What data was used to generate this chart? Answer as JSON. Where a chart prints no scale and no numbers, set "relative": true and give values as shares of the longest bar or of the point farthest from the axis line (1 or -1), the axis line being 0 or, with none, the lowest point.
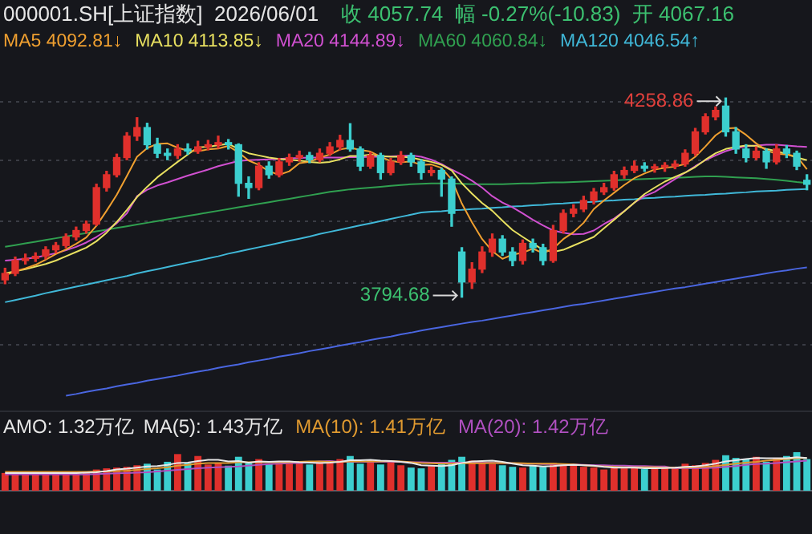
{
  "chart_data": [
    {
      "type": "candlestick",
      "title": "000001.SH[上证指数]  2026/06/01",
      "subtitle": "收 4057.74  幅 -0.27%(-10.83)  开 4067.16",
      "grid": "y",
      "tick_labels": false,
      "yticks": [
        4250,
        4114,
        3971,
        3828,
        3684
      ],
      "marker": "none",
      "categories": [
        null,
        null,
        null,
        null,
        null,
        null,
        null,
        null,
        null,
        null,
        null,
        null,
        null,
        null,
        null,
        null,
        null,
        null,
        null,
        null,
        null,
        null,
        null,
        null,
        null,
        null,
        null,
        null,
        null,
        null,
        null,
        null,
        null,
        null,
        null,
        null,
        null,
        null,
        null,
        null,
        null,
        null,
        null,
        null,
        null,
        null,
        null,
        null,
        null,
        null,
        null,
        null,
        null,
        null,
        null,
        null,
        null,
        null,
        null,
        null,
        null,
        null,
        null,
        null,
        null,
        null,
        null,
        null,
        null,
        null,
        null,
        null,
        null,
        null,
        null,
        null,
        null,
        null,
        null,
        null
      ],
      "ohlc": [
        [
          3835,
          3862,
          3826,
          3850
        ],
        [
          3850,
          3888,
          3845,
          3880
        ],
        [
          3880,
          3895,
          3872,
          3885
        ],
        [
          3885,
          3898,
          3878,
          3890
        ],
        [
          3890,
          3912,
          3884,
          3905
        ],
        [
          3905,
          3922,
          3898,
          3915
        ],
        [
          3915,
          3942,
          3910,
          3935
        ],
        [
          3935,
          3958,
          3928,
          3950
        ],
        [
          3950,
          3972,
          3944,
          3965
        ],
        [
          3965,
          4058,
          3962,
          4050
        ],
        [
          4050,
          4088,
          4042,
          4080
        ],
        [
          4080,
          4128,
          4075,
          4120
        ],
        [
          4120,
          4178,
          4115,
          4170
        ],
        [
          4170,
          4213,
          4160,
          4190
        ],
        [
          4190,
          4200,
          4140,
          4150
        ],
        [
          4150,
          4165,
          4120,
          4130
        ],
        [
          4130,
          4140,
          4115,
          4125
        ],
        [
          4125,
          4150,
          4118,
          4140
        ],
        [
          4140,
          4152,
          4128,
          4135
        ],
        [
          4135,
          4158,
          4130,
          4145
        ],
        [
          4145,
          4160,
          4138,
          4150
        ],
        [
          4150,
          4170,
          4142,
          4155
        ],
        [
          4155,
          4162,
          4140,
          4150
        ],
        [
          4150,
          4152,
          4030,
          4060
        ],
        [
          4060,
          4075,
          4025,
          4050
        ],
        [
          4050,
          4108,
          4045,
          4100
        ],
        [
          4100,
          4110,
          4072,
          4080
        ],
        [
          4080,
          4118,
          4075,
          4110
        ],
        [
          4110,
          4128,
          4102,
          4120
        ],
        [
          4120,
          4135,
          4112,
          4125
        ],
        [
          4125,
          4132,
          4108,
          4115
        ],
        [
          4115,
          4140,
          4110,
          4130
        ],
        [
          4130,
          4155,
          4125,
          4145
        ],
        [
          4145,
          4172,
          4138,
          4160
        ],
        [
          4160,
          4199,
          4135,
          4140
        ],
        [
          4140,
          4145,
          4090,
          4100
        ],
        [
          4100,
          4132,
          4095,
          4125
        ],
        [
          4125,
          4130,
          4070,
          4085
        ],
        [
          4085,
          4118,
          4080,
          4110
        ],
        [
          4110,
          4134,
          4104,
          4125
        ],
        [
          4125,
          4130,
          4100,
          4110
        ],
        [
          4110,
          4115,
          4070,
          4085
        ],
        [
          4085,
          4098,
          4078,
          4090
        ],
        [
          4090,
          4095,
          4030,
          4070
        ],
        [
          4070,
          4075,
          3960,
          3990
        ],
        [
          3900,
          3910,
          3794.68,
          3830
        ],
        [
          3830,
          3875,
          3815,
          3860
        ],
        [
          3860,
          3912,
          3852,
          3900
        ],
        [
          3900,
          3942,
          3890,
          3930
        ],
        [
          3930,
          3938,
          3892,
          3900
        ],
        [
          3900,
          3910,
          3868,
          3880
        ],
        [
          3880,
          3928,
          3872,
          3920
        ],
        [
          3920,
          3930,
          3900,
          3910
        ],
        [
          3910,
          3918,
          3870,
          3880
        ],
        [
          3880,
          3962,
          3876,
          3950
        ],
        [
          3950,
          3998,
          3944,
          3990
        ],
        [
          3990,
          4010,
          3982,
          4000
        ],
        [
          4000,
          4030,
          3994,
          4020
        ],
        [
          4020,
          4048,
          4012,
          4040
        ],
        [
          4040,
          4060,
          4034,
          4050
        ],
        [
          4050,
          4088,
          4044,
          4080
        ],
        [
          4080,
          4098,
          4072,
          4090
        ],
        [
          4090,
          4112,
          4085,
          4100
        ],
        [
          4100,
          4108,
          4088,
          4095
        ],
        [
          4095,
          4104,
          4086,
          4098
        ],
        [
          4098,
          4108,
          4088,
          4100
        ],
        [
          4100,
          4112,
          4094,
          4105
        ],
        [
          4105,
          4138,
          4100,
          4130
        ],
        [
          4130,
          4188,
          4125,
          4180
        ],
        [
          4180,
          4222,
          4175,
          4215
        ],
        [
          4215,
          4238,
          4208,
          4230
        ],
        [
          4240,
          4258.86,
          4170,
          4180
        ],
        [
          4180,
          4190,
          4130,
          4140
        ],
        [
          4140,
          4150,
          4110,
          4120
        ],
        [
          4120,
          4145,
          4115,
          4135
        ],
        [
          4135,
          4140,
          4095,
          4110
        ],
        [
          4110,
          4150,
          4105,
          4140
        ],
        [
          4140,
          4148,
          4120,
          4130
        ],
        [
          4130,
          4135,
          4092,
          4100
        ],
        [
          4067.16,
          4080,
          4045,
          4057.74
        ]
      ],
      "colors": [
        "#e0302c",
        "#e0302c",
        "#e0302c",
        "#e0302c",
        "#e0302c",
        "#e0302c",
        "#e0302c",
        "#e0302c",
        "#e0302c",
        "#e0302c",
        "#e0302c",
        "#e0302c",
        "#e0302c",
        "#e0302c",
        "#3ccfcf",
        "#3ccfcf",
        "#3ccfcf",
        "#e0302c",
        "#3ccfcf",
        "#e0302c",
        "#e0302c",
        "#e0302c",
        "#3ccfcf",
        "#3ccfcf",
        "#3ccfcf",
        "#e0302c",
        "#3ccfcf",
        "#e0302c",
        "#e0302c",
        "#e0302c",
        "#3ccfcf",
        "#e0302c",
        "#e0302c",
        "#e0302c",
        "#3ccfcf",
        "#3ccfcf",
        "#e0302c",
        "#3ccfcf",
        "#e0302c",
        "#e0302c",
        "#3ccfcf",
        "#3ccfcf",
        "#e0302c",
        "#3ccfcf",
        "#3ccfcf",
        "#3ccfcf",
        "#e0302c",
        "#e0302c",
        "#e0302c",
        "#3ccfcf",
        "#3ccfcf",
        "#e0302c",
        "#3ccfcf",
        "#3ccfcf",
        "#e0302c",
        "#e0302c",
        "#e0302c",
        "#e0302c",
        "#e0302c",
        "#e0302c",
        "#e0302c",
        "#e0302c",
        "#e0302c",
        "#3ccfcf",
        "#e0302c",
        "#e0302c",
        "#e0302c",
        "#e0302c",
        "#e0302c",
        "#e0302c",
        "#e0302c",
        "#3ccfcf",
        "#3ccfcf",
        "#3ccfcf",
        "#e0302c",
        "#3ccfcf",
        "#e0302c",
        "#3ccfcf",
        "#3ccfcf",
        "#3ccfcf"
      ],
      "series": [
        {
          "name": "MA5 4092.81↓",
          "type": "line",
          "color": "#f0a030",
          "values": [
            3845,
            3855,
            3862,
            3870,
            3882,
            3895,
            3906,
            3919,
            3934,
            3961,
            3996,
            4033,
            4077,
            4122,
            4142,
            4152,
            4153,
            4143,
            4136,
            4135,
            4139,
            4141,
            4147,
            4132,
            4113,
            4103,
            4088,
            4080,
            4088,
            4107,
            4110,
            4120,
            4127,
            4139,
            4143,
            4138,
            4134,
            4122,
            4112,
            4109,
            4111,
            4103,
            4104,
            4096,
            4069,
            4013,
            3969,
            3930,
            3902,
            3884,
            3894,
            3898,
            3908,
            3897,
            3908,
            3930,
            3946,
            3968,
            4000,
            4020,
            4038,
            4056,
            4072,
            4083,
            4092,
            4096,
            4099,
            4105,
            4122,
            4146,
            4172,
            4188,
            4189,
            4173,
            4153,
            4137,
            4129,
            4127,
            4123,
            4092.81
          ]
        },
        {
          "name": "MA10 4113.85↓",
          "type": "line",
          "color": "#e8e060",
          "values": [
            3850,
            3855,
            3860,
            3866,
            3872,
            3880,
            3890,
            3900,
            3910,
            3925,
            3945,
            3970,
            3998,
            4028,
            4052,
            4074,
            4092,
            4110,
            4127,
            4144,
            4145,
            4149,
            4152,
            4140,
            4130,
            4125,
            4120,
            4117,
            4115,
            4113,
            4110,
            4108,
            4110,
            4116,
            4124,
            4124,
            4127,
            4124,
            4122,
            4122,
            4120,
            4115,
            4110,
            4103,
            4090,
            4060,
            4036,
            4014,
            3996,
            3973,
            3951,
            3935,
            3920,
            3905,
            3900,
            3905,
            3915,
            3925,
            3935,
            3955,
            3975,
            3995,
            4015,
            4035,
            4050,
            4064,
            4075,
            4085,
            4098,
            4115,
            4130,
            4140,
            4145,
            4148,
            4147,
            4140,
            4135,
            4128,
            4120,
            4113.85
          ]
        },
        {
          "name": "MA20 4144.89↓",
          "type": "line",
          "color": "#d050d0",
          "values": [
            3880,
            3882,
            3884,
            3887,
            3892,
            3897,
            3904,
            3912,
            3922,
            3935,
            3950,
            3967,
            3990,
            4030,
            4045,
            4055,
            4062,
            4070,
            4078,
            4085,
            4092,
            4100,
            4106,
            4112,
            4114,
            4115,
            4116,
            4117,
            4118,
            4119,
            4120,
            4120,
            4120,
            4120,
            4121,
            4121,
            4122,
            4122,
            4123,
            4124,
            4125,
            4122,
            4115,
            4105,
            4092,
            4080,
            4066,
            4050,
            4030,
            4015,
            4004,
            3990,
            3975,
            3962,
            3950,
            3945,
            3941,
            3942,
            3950,
            3965,
            3978,
            3995,
            4015,
            4030,
            4040,
            4055,
            4070,
            4085,
            4100,
            4114,
            4125,
            4135,
            4142,
            4146,
            4148,
            4150,
            4150,
            4148,
            4146,
            4144.89
          ]
        },
        {
          "name": "MA60 4060.84↓",
          "type": "line",
          "color": "#30a050",
          "values": [
            3912,
            3916,
            3920,
            3924,
            3928,
            3932,
            3936,
            3940,
            3944,
            3948,
            3952,
            3956,
            3960,
            3964,
            3968,
            3972,
            3976,
            3980,
            3984,
            3988,
            3992,
            3996,
            4000,
            4004,
            4008,
            4012,
            4016,
            4020,
            4024,
            4028,
            4032,
            4036,
            4040,
            4043,
            4046,
            4048,
            4050,
            4052,
            4054,
            4056,
            4058,
            4059,
            4060,
            4060,
            4060,
            4059,
            4058,
            4058,
            4058,
            4058,
            4059,
            4060,
            4060,
            4061,
            4062,
            4062,
            4063,
            4064,
            4065,
            4066,
            4067,
            4068,
            4069,
            4070,
            4071,
            4072,
            4073,
            4074,
            4075,
            4076,
            4076,
            4075,
            4074,
            4073,
            4072,
            4070,
            4068,
            4066,
            4063,
            4060.84
          ]
        },
        {
          "name": "MA120 4046.54↑",
          "type": "line",
          "color": "#40b8d8",
          "values": [
            3783,
            3788,
            3793,
            3798,
            3804,
            3809,
            3814,
            3819,
            3824,
            3829,
            3834,
            3839,
            3844,
            3850,
            3855,
            3860,
            3865,
            3870,
            3875,
            3880,
            3885,
            3890,
            3896,
            3901,
            3906,
            3911,
            3916,
            3921,
            3926,
            3931,
            3936,
            3942,
            3947,
            3952,
            3957,
            3962,
            3967,
            3972,
            3977,
            3982,
            3987,
            3992,
            3994,
            3995,
            3997,
            3998,
            4000,
            4001,
            4003,
            4004,
            4006,
            4007,
            4009,
            4010,
            4012,
            4013,
            4015,
            4016,
            4017,
            4019,
            4020,
            4022,
            4023,
            4025,
            4026,
            4028,
            4029,
            4031,
            4032,
            4033,
            4035,
            4036,
            4038,
            4039,
            4041,
            4042,
            4043,
            4045,
            4046,
            4046.54
          ]
        },
        {
          "type": "line",
          "color": "#4a66e0",
          "values": [
            null,
            null,
            null,
            null,
            null,
            null,
            3565,
            3569,
            3574,
            3578,
            3582,
            3587,
            3591,
            3595,
            3600,
            3604,
            3608,
            3612,
            3617,
            3621,
            3625,
            3630,
            3634,
            3638,
            3643,
            3647,
            3651,
            3656,
            3660,
            3664,
            3669,
            3673,
            3677,
            3682,
            3686,
            3690,
            3695,
            3699,
            3703,
            3708,
            3712,
            3717,
            3721,
            3725,
            3729,
            3733,
            3737,
            3740,
            3744,
            3748,
            3752,
            3756,
            3760,
            3764,
            3768,
            3772,
            3776,
            3779,
            3783,
            3787,
            3791,
            3795,
            3799,
            3803,
            3807,
            3811,
            3815,
            3818,
            3822,
            3826,
            3830,
            3834,
            3838,
            3842,
            3846,
            3850,
            3854,
            3857,
            3861,
            3864
          ]
        }
      ],
      "annotations": [
        "4258.86",
        "3794.68"
      ]
    },
    {
      "type": "bar",
      "title": "AMO: 1.32万亿",
      "relative": true,
      "marker": "none",
      "categories": [
        null,
        null,
        null,
        null,
        null,
        null,
        null,
        null,
        null,
        null,
        null,
        null,
        null,
        null,
        null,
        null,
        null,
        null,
        null,
        null,
        null,
        null,
        null,
        null,
        null,
        null,
        null,
        null,
        null,
        null,
        null,
        null,
        null,
        null,
        null,
        null,
        null,
        null,
        null,
        null,
        null,
        null,
        null,
        null,
        null,
        null,
        null,
        null,
        null,
        null,
        null,
        null,
        null,
        null,
        null,
        null,
        null,
        null,
        null,
        null,
        null,
        null,
        null,
        null,
        null,
        null,
        null,
        null,
        null,
        null,
        null,
        null,
        null,
        null,
        null,
        null,
        null,
        null,
        null,
        null
      ],
      "series": [
        {
          "type": "bar",
          "values": [
            0.46,
            0.46,
            0.46,
            0.47,
            0.46,
            0.46,
            0.47,
            0.46,
            0.48,
            0.55,
            0.58,
            0.6,
            0.62,
            0.66,
            0.7,
            0.55,
            0.75,
            0.95,
            0.72,
            0.9,
            0.68,
            0.72,
            0.65,
            0.88,
            0.72,
            0.82,
            0.7,
            0.72,
            0.74,
            0.72,
            0.68,
            0.75,
            0.78,
            0.82,
            0.9,
            0.7,
            0.8,
            0.68,
            0.78,
            0.66,
            0.6,
            0.58,
            0.64,
            0.7,
            0.8,
            0.88,
            0.78,
            0.72,
            0.7,
            0.66,
            0.62,
            0.6,
            0.66,
            0.62,
            0.72,
            0.68,
            0.65,
            0.62,
            0.6,
            0.55,
            0.6,
            0.58,
            0.62,
            0.56,
            0.58,
            0.6,
            0.62,
            0.7,
            0.66,
            0.72,
            0.8,
            0.92,
            0.85,
            0.82,
            0.88,
            0.75,
            0.85,
            0.9,
            1,
            0.82
          ],
          "colors": [
            "#e0302c",
            "#e0302c",
            "#e0302c",
            "#e0302c",
            "#e0302c",
            "#e0302c",
            "#e0302c",
            "#e0302c",
            "#e0302c",
            "#e0302c",
            "#e0302c",
            "#e0302c",
            "#e0302c",
            "#e0302c",
            "#3ccfcf",
            "#3ccfcf",
            "#3ccfcf",
            "#e0302c",
            "#3ccfcf",
            "#e0302c",
            "#e0302c",
            "#e0302c",
            "#3ccfcf",
            "#3ccfcf",
            "#3ccfcf",
            "#e0302c",
            "#3ccfcf",
            "#e0302c",
            "#e0302c",
            "#e0302c",
            "#3ccfcf",
            "#e0302c",
            "#e0302c",
            "#e0302c",
            "#3ccfcf",
            "#3ccfcf",
            "#e0302c",
            "#3ccfcf",
            "#e0302c",
            "#e0302c",
            "#3ccfcf",
            "#3ccfcf",
            "#e0302c",
            "#3ccfcf",
            "#3ccfcf",
            "#3ccfcf",
            "#e0302c",
            "#e0302c",
            "#e0302c",
            "#3ccfcf",
            "#3ccfcf",
            "#e0302c",
            "#3ccfcf",
            "#3ccfcf",
            "#e0302c",
            "#e0302c",
            "#e0302c",
            "#e0302c",
            "#e0302c",
            "#e0302c",
            "#e0302c",
            "#e0302c",
            "#e0302c",
            "#3ccfcf",
            "#e0302c",
            "#e0302c",
            "#e0302c",
            "#e0302c",
            "#e0302c",
            "#e0302c",
            "#e0302c",
            "#3ccfcf",
            "#3ccfcf",
            "#3ccfcf",
            "#e0302c",
            "#3ccfcf",
            "#e0302c",
            "#3ccfcf",
            "#3ccfcf",
            "#3ccfcf"
          ]
        },
        {
          "name": "MA(5): 1.43万亿",
          "type": "line",
          "color": "#e8e8e8",
          "values": [
            0.46,
            0.46,
            0.46,
            0.46,
            0.46,
            0.46,
            0.46,
            0.46,
            0.47,
            0.48,
            0.51,
            0.55,
            0.57,
            0.6,
            0.63,
            0.64,
            0.67,
            0.72,
            0.73,
            0.77,
            0.8,
            0.8,
            0.76,
            0.77,
            0.73,
            0.76,
            0.75,
            0.76,
            0.76,
            0.74,
            0.73,
            0.72,
            0.73,
            0.75,
            0.79,
            0.79,
            0.8,
            0.78,
            0.77,
            0.75,
            0.72,
            0.66,
            0.65,
            0.64,
            0.66,
            0.72,
            0.76,
            0.77,
            0.78,
            0.75,
            0.7,
            0.66,
            0.65,
            0.63,
            0.64,
            0.66,
            0.67,
            0.66,
            0.65,
            0.62,
            0.6,
            0.6,
            0.6,
            0.58,
            0.58,
            0.59,
            0.6,
            0.62,
            0.63,
            0.66,
            0.7,
            0.76,
            0.79,
            0.82,
            0.85,
            0.84,
            0.84,
            0.84,
            0.87,
            0.85
          ]
        },
        {
          "name": "MA(10): 1.41万亿",
          "type": "line",
          "color": "#e09a30",
          "values": [
            0.49,
            0.49,
            0.49,
            0.49,
            0.49,
            0.49,
            0.49,
            0.49,
            0.49,
            0.5,
            0.5,
            0.51,
            0.52,
            0.54,
            0.56,
            0.58,
            0.61,
            0.65,
            0.67,
            0.7,
            0.72,
            0.72,
            0.72,
            0.74,
            0.74,
            0.74,
            0.74,
            0.74,
            0.74,
            0.75,
            0.76,
            0.76,
            0.75,
            0.75,
            0.76,
            0.76,
            0.76,
            0.76,
            0.77,
            0.76,
            0.74,
            0.72,
            0.71,
            0.7,
            0.7,
            0.71,
            0.71,
            0.71,
            0.72,
            0.72,
            0.72,
            0.71,
            0.7,
            0.7,
            0.7,
            0.69,
            0.68,
            0.66,
            0.64,
            0.63,
            0.62,
            0.61,
            0.61,
            0.61,
            0.61,
            0.6,
            0.6,
            0.6,
            0.61,
            0.62,
            0.64,
            0.67,
            0.7,
            0.73,
            0.75,
            0.78,
            0.8,
            0.82,
            0.84,
            0.85
          ]
        },
        {
          "name": "MA(20): 1.42万亿",
          "type": "line",
          "color": "#b050c0",
          "values": [
            0.42,
            0.42,
            0.42,
            0.42,
            0.42,
            0.42,
            0.42,
            0.42,
            0.42,
            0.43,
            0.44,
            0.45,
            0.46,
            0.47,
            0.48,
            0.5,
            0.52,
            0.54,
            0.56,
            0.58,
            0.6,
            0.61,
            0.62,
            0.63,
            0.65,
            0.67,
            0.69,
            0.7,
            0.71,
            0.72,
            0.74,
            0.76,
            0.77,
            0.75,
            0.75,
            0.75,
            0.75,
            0.75,
            0.75,
            0.75,
            0.74,
            0.74,
            0.73,
            0.73,
            0.73,
            0.73,
            0.73,
            0.73,
            0.73,
            0.72,
            0.71,
            0.7,
            0.7,
            0.69,
            0.69,
            0.68,
            0.68,
            0.67,
            0.66,
            0.66,
            0.65,
            0.65,
            0.64,
            0.64,
            0.63,
            0.63,
            0.58,
            0.58,
            0.58,
            0.59,
            0.6,
            0.62,
            0.64,
            0.67,
            0.69,
            0.7,
            0.72,
            0.74,
            0.76,
            0.78
          ]
        }
      ]
    }
  ]
}
